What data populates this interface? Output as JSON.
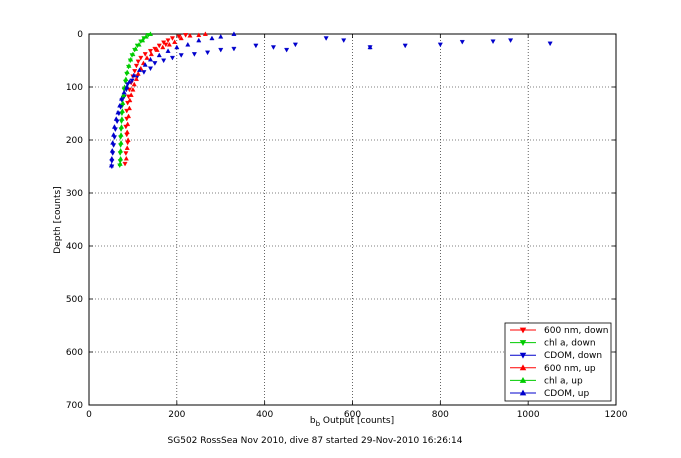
{
  "chart_data": {
    "type": "scatter",
    "title": "",
    "xlabel_main": "b",
    "xlabel_sub": "b",
    "xlabel_rest": " Output [counts]",
    "ylabel": "Depth [counts]",
    "footer": "SG502 RossSea Nov 2010, dive 87 started 29-Nov-2010 16:26:14",
    "xlim": [
      0,
      1200
    ],
    "ylim": [
      0,
      700
    ],
    "y_reversed": true,
    "grid": true,
    "legend_position": "bottom-right",
    "x_ticks": [
      "0",
      "200",
      "400",
      "600",
      "800",
      "1000",
      "1200"
    ],
    "y_ticks": [
      "0",
      "100",
      "200",
      "300",
      "400",
      "500",
      "600",
      "700"
    ],
    "series": [
      {
        "name": "600 nm, down",
        "color": "#ff0000",
        "marker": "triangle-down",
        "points": [
          [
            220,
            2
          ],
          [
            205,
            5
          ],
          [
            190,
            8
          ],
          [
            180,
            12
          ],
          [
            170,
            16
          ],
          [
            175,
            20
          ],
          [
            160,
            22
          ],
          [
            150,
            28
          ],
          [
            140,
            32
          ],
          [
            128,
            38
          ],
          [
            118,
            45
          ],
          [
            112,
            52
          ],
          [
            108,
            60
          ],
          [
            104,
            70
          ],
          [
            100,
            80
          ],
          [
            96,
            92
          ],
          [
            92,
            105
          ],
          [
            90,
            118
          ],
          [
            88,
            130
          ],
          [
            86,
            145
          ],
          [
            86,
            160
          ],
          [
            84,
            175
          ],
          [
            86,
            190
          ],
          [
            88,
            205
          ],
          [
            84,
            225
          ],
          [
            82,
            245
          ]
        ]
      },
      {
        "name": "chl a, down",
        "color": "#00cc00",
        "marker": "triangle-down",
        "points": [
          [
            135,
            2
          ],
          [
            125,
            8
          ],
          [
            118,
            14
          ],
          [
            110,
            22
          ],
          [
            104,
            30
          ],
          [
            98,
            40
          ],
          [
            94,
            50
          ],
          [
            90,
            62
          ],
          [
            86,
            75
          ],
          [
            83,
            90
          ],
          [
            80,
            105
          ],
          [
            78,
            120
          ],
          [
            76,
            135
          ],
          [
            75,
            150
          ],
          [
            74,
            165
          ],
          [
            73,
            180
          ],
          [
            72,
            195
          ],
          [
            72,
            210
          ],
          [
            71,
            225
          ],
          [
            71,
            240
          ],
          [
            70,
            248
          ]
        ]
      },
      {
        "name": "CDOM, down",
        "color": "#0000cc",
        "marker": "triangle-down",
        "points": [
          [
            1050,
            18
          ],
          [
            960,
            12
          ],
          [
            920,
            14
          ],
          [
            850,
            15
          ],
          [
            800,
            20
          ],
          [
            720,
            22
          ],
          [
            640,
            25
          ],
          [
            580,
            12
          ],
          [
            540,
            8
          ],
          [
            470,
            20
          ],
          [
            450,
            30
          ],
          [
            420,
            25
          ],
          [
            380,
            22
          ],
          [
            330,
            28
          ],
          [
            300,
            30
          ],
          [
            270,
            35
          ],
          [
            240,
            38
          ],
          [
            210,
            40
          ],
          [
            190,
            45
          ],
          [
            170,
            50
          ],
          [
            150,
            55
          ],
          [
            140,
            65
          ],
          [
            125,
            72
          ],
          [
            110,
            80
          ],
          [
            98,
            88
          ],
          [
            88,
            95
          ],
          [
            85,
            105
          ],
          [
            80,
            118
          ],
          [
            75,
            125
          ],
          [
            72,
            138
          ],
          [
            68,
            150
          ],
          [
            64,
            165
          ],
          [
            60,
            180
          ],
          [
            58,
            195
          ],
          [
            56,
            210
          ],
          [
            54,
            225
          ],
          [
            52,
            240
          ],
          [
            52,
            250
          ]
        ]
      },
      {
        "name": "600 nm, up",
        "color": "#ff0000",
        "marker": "triangle-up",
        "points": [
          [
            265,
            0
          ],
          [
            250,
            2
          ],
          [
            230,
            3
          ],
          [
            210,
            8
          ],
          [
            195,
            15
          ],
          [
            183,
            20
          ],
          [
            168,
            25
          ],
          [
            155,
            30
          ],
          [
            142,
            38
          ],
          [
            132,
            45
          ],
          [
            124,
            55
          ],
          [
            118,
            65
          ],
          [
            112,
            75
          ],
          [
            108,
            85
          ],
          [
            103,
            95
          ],
          [
            100,
            105
          ],
          [
            96,
            115
          ],
          [
            93,
            125
          ],
          [
            92,
            140
          ],
          [
            90,
            155
          ],
          [
            88,
            170
          ],
          [
            87,
            185
          ],
          [
            89,
            200
          ],
          [
            87,
            215
          ],
          [
            85,
            235
          ]
        ]
      },
      {
        "name": "chl a, up",
        "color": "#00cc00",
        "marker": "triangle-up",
        "points": [
          [
            140,
            0
          ],
          [
            130,
            5
          ],
          [
            122,
            12
          ],
          [
            114,
            20
          ],
          [
            106,
            28
          ],
          [
            100,
            38
          ],
          [
            95,
            48
          ],
          [
            91,
            60
          ],
          [
            87,
            72
          ],
          [
            84,
            85
          ],
          [
            81,
            100
          ],
          [
            79,
            115
          ],
          [
            77,
            130
          ],
          [
            76,
            145
          ],
          [
            75,
            160
          ],
          [
            74,
            175
          ],
          [
            73,
            190
          ],
          [
            73,
            205
          ],
          [
            72,
            220
          ],
          [
            72,
            235
          ],
          [
            71,
            245
          ]
        ]
      },
      {
        "name": "CDOM, up",
        "color": "#0000cc",
        "marker": "triangle-up",
        "points": [
          [
            640,
            25
          ],
          [
            330,
            0
          ],
          [
            300,
            5
          ],
          [
            280,
            8
          ],
          [
            250,
            12
          ],
          [
            225,
            20
          ],
          [
            200,
            25
          ],
          [
            180,
            32
          ],
          [
            160,
            40
          ],
          [
            140,
            48
          ],
          [
            128,
            58
          ],
          [
            115,
            68
          ],
          [
            102,
            78
          ],
          [
            92,
            90
          ],
          [
            86,
            100
          ],
          [
            80,
            110
          ],
          [
            74,
            122
          ],
          [
            70,
            135
          ],
          [
            66,
            148
          ],
          [
            62,
            160
          ],
          [
            58,
            175
          ],
          [
            56,
            190
          ],
          [
            54,
            205
          ],
          [
            53,
            220
          ],
          [
            52,
            235
          ],
          [
            51,
            248
          ]
        ]
      }
    ]
  }
}
